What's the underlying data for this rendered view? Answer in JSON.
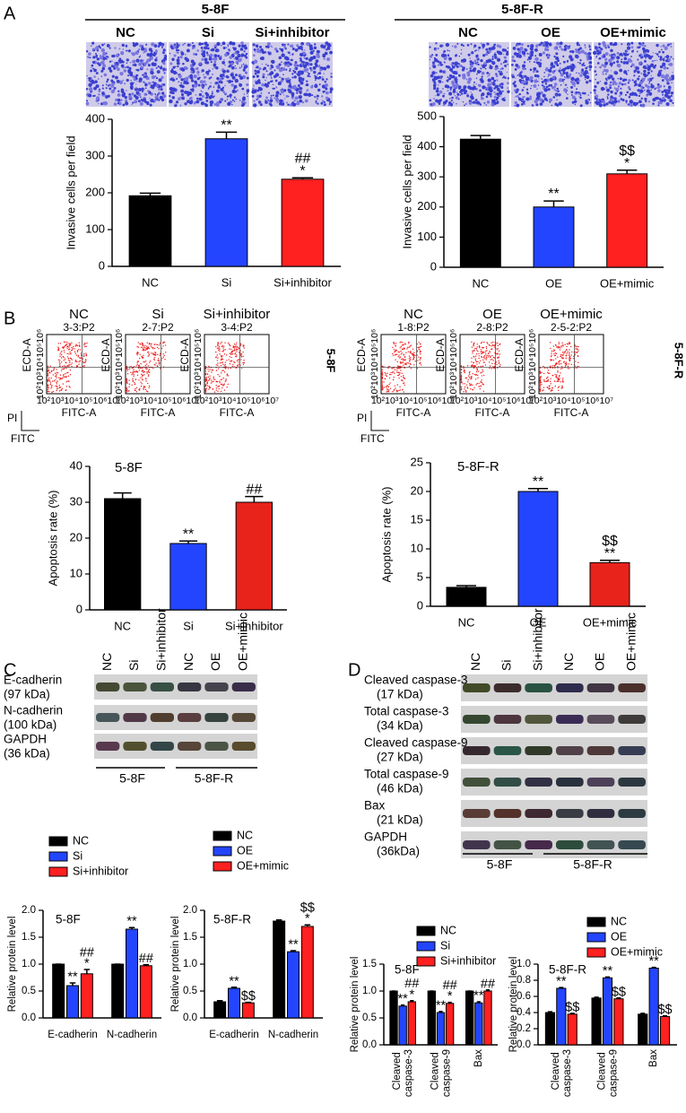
{
  "panel_labels": [
    "A",
    "B",
    "C",
    "D"
  ],
  "invasion": [
    {
      "group": "5-8F",
      "labels": [
        "NC",
        "Si",
        "Si+inhibitor"
      ]
    },
    {
      "group": "5-8F-R",
      "labels": [
        "NC",
        "OE",
        "OE+mimic"
      ]
    }
  ],
  "flow": {
    "groups": [
      {
        "side_label": "5-8F",
        "plots": [
          {
            "title": "NC",
            "subtitle": "3-3:P2"
          },
          {
            "title": "Si",
            "subtitle": "2-7:P2"
          },
          {
            "title": "Si+inhibitor",
            "subtitle": "3-4:P2"
          }
        ]
      },
      {
        "side_label": "5-8F-R",
        "plots": [
          {
            "title": "NC",
            "subtitle": "1-8:P2"
          },
          {
            "title": "OE",
            "subtitle": "2-8:P2"
          },
          {
            "title": "OE+mimic",
            "subtitle": "2-5-2:P2"
          }
        ]
      }
    ],
    "x_label": "FITC-A",
    "y_label": "ECD-A",
    "x_ticks": "10²10³10⁴10⁵10⁶10⁷",
    "y_ticks": "10²10³10⁴10⁵10⁶",
    "key_y": "PI",
    "key_x": "FITC"
  },
  "blots": [
    {
      "lanes": [
        "NC",
        "Si",
        "Si+inhibitor",
        "NC",
        "OE",
        "OE+mimic"
      ],
      "groups": [
        "5-8F",
        "5-8F-R"
      ],
      "rows": [
        {
          "name": "E-cadherin",
          "size": "(97 kDa)"
        },
        {
          "name": "N-cadherin",
          "size": "(100 kDa)"
        },
        {
          "name": "GAPDH",
          "size": "(36 kDa)"
        }
      ]
    },
    {
      "lanes": [
        "NC",
        "Si",
        "Si+inhibitor",
        "NC",
        "OE",
        "OE+mimic"
      ],
      "groups": [
        "5-8F",
        "5-8F-R"
      ],
      "rows": [
        {
          "name": "Cleaved caspase-3",
          "size": "(17 kDa)"
        },
        {
          "name": "Total caspase-3",
          "size": "(34 kDa)"
        },
        {
          "name": "Cleaved caspase-9",
          "size": "(27 kDa)"
        },
        {
          "name": "Total caspase-9",
          "size": "(46 kDa)"
        },
        {
          "name": "Bax",
          "size": "(21 kDa)"
        },
        {
          "name": "GAPDH",
          "size": "(36kDa)"
        }
      ]
    }
  ],
  "chart_data": [
    {
      "type": "bar",
      "y_label": "Invasive cells per field",
      "categories": [
        "NC",
        "Si",
        "Si+inhibitor"
      ],
      "values": [
        192,
        347,
        237
      ],
      "errors": [
        7,
        18,
        4
      ],
      "colors": [
        "#000000",
        "#2345ff",
        "#ff2020"
      ],
      "annotations": [
        [],
        [
          "**"
        ],
        [
          "*",
          "##"
        ]
      ],
      "ylim": [
        0,
        400
      ],
      "yticks": [
        0,
        100,
        200,
        300,
        400
      ]
    },
    {
      "type": "bar",
      "y_label": "Invasive cells per field",
      "categories": [
        "NC",
        "OE",
        "OE+mimic"
      ],
      "values": [
        425,
        200,
        310
      ],
      "errors": [
        12,
        20,
        12
      ],
      "colors": [
        "#000000",
        "#2345ff",
        "#ff2020"
      ],
      "annotations": [
        [],
        [
          "**"
        ],
        [
          "*",
          "$$"
        ]
      ],
      "ylim": [
        0,
        500
      ],
      "yticks": [
        0,
        100,
        200,
        300,
        400,
        500
      ]
    },
    {
      "type": "bar",
      "title": "5-8F",
      "y_label": "Apoptosis rate (%)",
      "categories": [
        "NC",
        "Si",
        "Si+inhibitor"
      ],
      "values": [
        31,
        18.5,
        30
      ],
      "errors": [
        1.6,
        0.7,
        1.6
      ],
      "colors": [
        "#000000",
        "#2345ff",
        "#e8231c"
      ],
      "annotations": [
        [],
        [
          "**"
        ],
        [
          "##"
        ]
      ],
      "ylim": [
        0,
        40
      ],
      "yticks": [
        0,
        10,
        20,
        30,
        40
      ]
    },
    {
      "type": "bar",
      "title": "5-8F-R",
      "y_label": "Apoptosis rate (%)",
      "categories": [
        "NC",
        "OE",
        "OE+mimic"
      ],
      "values": [
        3.3,
        20,
        7.6
      ],
      "errors": [
        0.3,
        0.5,
        0.4
      ],
      "colors": [
        "#000000",
        "#2345ff",
        "#e8231c"
      ],
      "annotations": [
        [],
        [
          "**"
        ],
        [
          "**",
          "$$"
        ]
      ],
      "ylim": [
        0,
        25
      ],
      "yticks": [
        0,
        5,
        10,
        15,
        20,
        25
      ]
    },
    {
      "type": "grouped_bar",
      "title": "5-8F",
      "y_label": "Relative protein level",
      "categories": [
        "E-cadherin",
        "N-cadherin"
      ],
      "series": [
        {
          "name": "NC",
          "color": "#000000",
          "values": [
            1.0,
            1.0
          ],
          "errors": [
            0,
            0
          ],
          "annotations": [
            [],
            []
          ]
        },
        {
          "name": "Si",
          "color": "#2345ff",
          "values": [
            0.6,
            1.65
          ],
          "errors": [
            0.05,
            0.03
          ],
          "annotations": [
            [
              "**"
            ],
            [
              "**"
            ]
          ]
        },
        {
          "name": "Si+inhibitor",
          "color": "#ff2020",
          "values": [
            0.82,
            0.97
          ],
          "errors": [
            0.08,
            0.02
          ],
          "annotations": [
            [
              "*",
              "##"
            ],
            [
              "##"
            ]
          ]
        }
      ],
      "ylim": [
        0,
        2
      ],
      "yticks": [
        {
          "value": 0,
          "label": "0.0"
        },
        0.5,
        {
          "value": 1,
          "label": "1.0"
        },
        1.5,
        {
          "value": 2,
          "label": "2.0"
        }
      ]
    },
    {
      "type": "grouped_bar",
      "title": "5-8F-R",
      "y_label": "Relative protein level",
      "categories": [
        "E-cadherin",
        "N-cadherin"
      ],
      "series": [
        {
          "name": "NC",
          "color": "#000000",
          "values": [
            0.3,
            1.8
          ],
          "errors": [
            0.02,
            0.02
          ],
          "annotations": [
            [],
            []
          ]
        },
        {
          "name": "OE",
          "color": "#2345ff",
          "values": [
            0.55,
            1.23
          ],
          "errors": [
            0.02,
            0.02
          ],
          "annotations": [
            [
              "**"
            ],
            [
              "**"
            ]
          ]
        },
        {
          "name": "OE+mimic",
          "color": "#ff2020",
          "values": [
            0.28,
            1.7
          ],
          "errors": [
            0.01,
            0.03
          ],
          "annotations": [
            [
              "$$"
            ],
            [
              "*",
              "$$"
            ]
          ]
        }
      ],
      "ylim": [
        0,
        2
      ],
      "yticks": [
        {
          "value": 0,
          "label": "0.0"
        },
        0.5,
        {
          "value": 1,
          "label": "1.0"
        },
        1.5,
        {
          "value": 2,
          "label": "2.0"
        }
      ]
    },
    {
      "type": "grouped_bar",
      "title": "5-8F",
      "y_label": "Relative protein level",
      "categories": [
        "Cleaved caspase-3",
        "Cleaved caspase-9",
        "Bax"
      ],
      "series": [
        {
          "name": "NC",
          "color": "#000000",
          "values": [
            1.0,
            1.0,
            1.0
          ],
          "errors": [
            0,
            0,
            0
          ],
          "annotations": [
            [],
            [],
            []
          ]
        },
        {
          "name": "Si",
          "color": "#2345ff",
          "values": [
            0.72,
            0.6,
            0.78
          ],
          "errors": [
            0.02,
            0.02,
            0.02
          ],
          "annotations": [
            [
              "**"
            ],
            [
              "**"
            ],
            [
              "**"
            ]
          ]
        },
        {
          "name": "Si+inhibitor",
          "color": "#ff2020",
          "values": [
            0.8,
            0.77,
            1.0
          ],
          "errors": [
            0.02,
            0.02,
            0.02
          ],
          "annotations": [
            [
              "*",
              "##"
            ],
            [
              "*",
              "##"
            ],
            [
              "##"
            ]
          ]
        }
      ],
      "ylim": [
        0,
        1.5
      ],
      "yticks": [
        {
          "value": 0,
          "label": "0.0"
        },
        0.5,
        {
          "value": 1,
          "label": "1.0"
        },
        1.5
      ]
    },
    {
      "type": "grouped_bar",
      "title": "5-8F-R",
      "y_label": "Relative protein level",
      "categories": [
        "Cleaved caspase-3",
        "Cleaved caspase-9",
        "Bax"
      ],
      "series": [
        {
          "name": "NC",
          "color": "#000000",
          "values": [
            0.4,
            0.58,
            0.38
          ],
          "errors": [
            0.01,
            0.01,
            0.01
          ],
          "annotations": [
            [],
            [],
            []
          ]
        },
        {
          "name": "OE",
          "color": "#2345ff",
          "values": [
            0.7,
            0.83,
            0.95
          ],
          "errors": [
            0.01,
            0.01,
            0.01
          ],
          "annotations": [
            [
              "**"
            ],
            [
              "**"
            ],
            [
              "**"
            ]
          ]
        },
        {
          "name": "OE+mimic",
          "color": "#ff2020",
          "values": [
            0.38,
            0.57,
            0.35
          ],
          "errors": [
            0.01,
            0.01,
            0.01
          ],
          "annotations": [
            [
              "$$"
            ],
            [
              "$$"
            ],
            [
              "$$"
            ]
          ]
        }
      ],
      "ylim": [
        0,
        1
      ],
      "yticks": [
        {
          "value": 0,
          "label": "0.0"
        },
        0.2,
        0.4,
        0.6,
        0.8,
        {
          "value": 1,
          "label": "1.0"
        }
      ]
    }
  ]
}
